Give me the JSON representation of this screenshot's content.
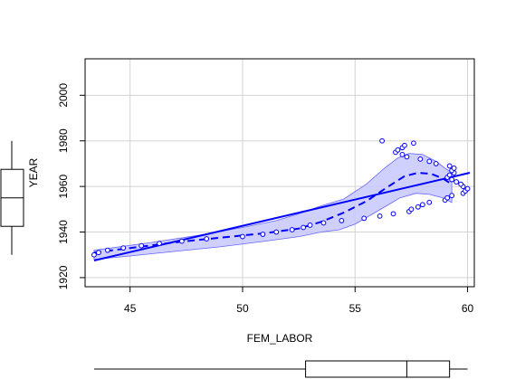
{
  "chart_data": {
    "type": "scatter",
    "xlabel": "FEM_LABOR",
    "ylabel": "YEAR",
    "xlim": [
      43.0,
      60.3
    ],
    "ylim": [
      1916,
      2016
    ],
    "x_ticks": [
      45,
      50,
      55,
      60
    ],
    "y_ticks": [
      1920,
      1940,
      1960,
      1980,
      2000
    ],
    "grid": true,
    "colors": {
      "points": "#0000ff",
      "band_fill": "#c8c8ff",
      "band_edge": "#6666ff",
      "box": "#000000",
      "grid": "#d3d3d3"
    },
    "points": [
      {
        "x": 43.4,
        "y": 1930
      },
      {
        "x": 43.6,
        "y": 1931
      },
      {
        "x": 44.0,
        "y": 1932
      },
      {
        "x": 44.7,
        "y": 1933
      },
      {
        "x": 45.5,
        "y": 1934
      },
      {
        "x": 46.3,
        "y": 1935
      },
      {
        "x": 47.3,
        "y": 1936
      },
      {
        "x": 48.4,
        "y": 1937
      },
      {
        "x": 50.0,
        "y": 1938
      },
      {
        "x": 50.9,
        "y": 1939
      },
      {
        "x": 51.5,
        "y": 1940
      },
      {
        "x": 52.2,
        "y": 1941
      },
      {
        "x": 52.7,
        "y": 1942
      },
      {
        "x": 53.0,
        "y": 1943
      },
      {
        "x": 53.6,
        "y": 1944
      },
      {
        "x": 54.4,
        "y": 1945
      },
      {
        "x": 55.4,
        "y": 1946
      },
      {
        "x": 56.1,
        "y": 1947
      },
      {
        "x": 56.7,
        "y": 1948
      },
      {
        "x": 57.4,
        "y": 1949
      },
      {
        "x": 57.5,
        "y": 1950
      },
      {
        "x": 57.8,
        "y": 1951
      },
      {
        "x": 58.0,
        "y": 1952
      },
      {
        "x": 58.3,
        "y": 1953
      },
      {
        "x": 59.0,
        "y": 1954
      },
      {
        "x": 59.1,
        "y": 1955
      },
      {
        "x": 59.3,
        "y": 1956
      },
      {
        "x": 59.8,
        "y": 1957
      },
      {
        "x": 59.9,
        "y": 1958
      },
      {
        "x": 60.0,
        "y": 1959
      },
      {
        "x": 59.8,
        "y": 1960
      },
      {
        "x": 59.7,
        "y": 1961
      },
      {
        "x": 59.5,
        "y": 1962
      },
      {
        "x": 59.3,
        "y": 1963
      },
      {
        "x": 59.1,
        "y": 1964
      },
      {
        "x": 59.2,
        "y": 1965
      },
      {
        "x": 59.4,
        "y": 1966
      },
      {
        "x": 59.3,
        "y": 1967
      },
      {
        "x": 59.4,
        "y": 1968
      },
      {
        "x": 59.2,
        "y": 1969
      },
      {
        "x": 58.6,
        "y": 1970
      },
      {
        "x": 58.3,
        "y": 1971
      },
      {
        "x": 57.9,
        "y": 1972
      },
      {
        "x": 57.3,
        "y": 1973
      },
      {
        "x": 57.1,
        "y": 1974
      },
      {
        "x": 56.8,
        "y": 1975
      },
      {
        "x": 56.9,
        "y": 1976
      },
      {
        "x": 57.1,
        "y": 1977
      },
      {
        "x": 57.2,
        "y": 1978
      },
      {
        "x": 57.6,
        "y": 1979
      },
      {
        "x": 56.2,
        "y": 1980
      }
    ],
    "linear_fit": [
      {
        "x": 43.4,
        "y": 1927.5
      },
      {
        "x": 60.1,
        "y": 1966.0
      }
    ],
    "smooth_fit": [
      {
        "x": 43.4,
        "y": 1931
      },
      {
        "x": 45.0,
        "y": 1933
      },
      {
        "x": 47.0,
        "y": 1935.5
      },
      {
        "x": 49.0,
        "y": 1937.5
      },
      {
        "x": 51.0,
        "y": 1939.5
      },
      {
        "x": 52.5,
        "y": 1941.5
      },
      {
        "x": 53.5,
        "y": 1944.5
      },
      {
        "x": 54.5,
        "y": 1948.5
      },
      {
        "x": 55.5,
        "y": 1953.5
      },
      {
        "x": 56.4,
        "y": 1959.5
      },
      {
        "x": 57.2,
        "y": 1964.5
      },
      {
        "x": 57.8,
        "y": 1966.0
      },
      {
        "x": 58.4,
        "y": 1965.5
      },
      {
        "x": 58.9,
        "y": 1963.5
      },
      {
        "x": 59.3,
        "y": 1961.0
      }
    ],
    "confidence_band_upper": [
      {
        "x": 43.4,
        "y": 1932
      },
      {
        "x": 46.0,
        "y": 1935.5
      },
      {
        "x": 48.0,
        "y": 1938.5
      },
      {
        "x": 50.0,
        "y": 1942
      },
      {
        "x": 51.5,
        "y": 1945
      },
      {
        "x": 52.5,
        "y": 1948
      },
      {
        "x": 53.5,
        "y": 1951.5
      },
      {
        "x": 54.5,
        "y": 1954.5
      },
      {
        "x": 55.5,
        "y": 1961
      },
      {
        "x": 56.3,
        "y": 1968
      },
      {
        "x": 56.9,
        "y": 1972.5
      },
      {
        "x": 57.4,
        "y": 1974.5
      },
      {
        "x": 58.0,
        "y": 1974
      },
      {
        "x": 58.6,
        "y": 1971
      },
      {
        "x": 59.0,
        "y": 1968
      },
      {
        "x": 59.3,
        "y": 1966
      }
    ],
    "confidence_band_lower": [
      {
        "x": 59.3,
        "y": 1953
      },
      {
        "x": 58.9,
        "y": 1955
      },
      {
        "x": 58.3,
        "y": 1956.5
      },
      {
        "x": 57.7,
        "y": 1957
      },
      {
        "x": 57.0,
        "y": 1955
      },
      {
        "x": 56.4,
        "y": 1951.5
      },
      {
        "x": 55.7,
        "y": 1947.5
      },
      {
        "x": 55.0,
        "y": 1943.5
      },
      {
        "x": 54.3,
        "y": 1941
      },
      {
        "x": 53.5,
        "y": 1940
      },
      {
        "x": 52.5,
        "y": 1938
      },
      {
        "x": 51.0,
        "y": 1936
      },
      {
        "x": 49.0,
        "y": 1933.5
      },
      {
        "x": 47.0,
        "y": 1931.5
      },
      {
        "x": 45.0,
        "y": 1929.5
      },
      {
        "x": 43.4,
        "y": 1928
      }
    ],
    "x_boxplot": {
      "min": 43.4,
      "q1": 52.8,
      "median": 57.3,
      "q3": 59.2,
      "max": 60.0
    },
    "y_boxplot": {
      "min": 1930,
      "q1": 1942.5,
      "median": 1955,
      "q3": 1967.5,
      "max": 1980
    }
  }
}
